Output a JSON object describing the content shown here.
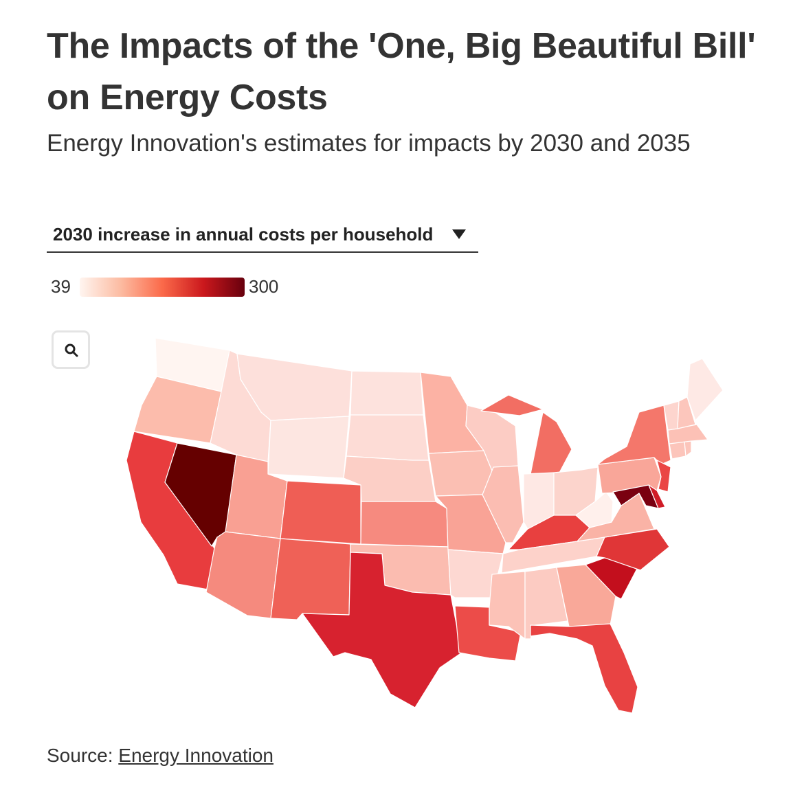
{
  "title": "The Impacts of the 'One, Big Beautiful Bill' on Energy Costs",
  "subtitle": "Energy Innovation's estimates for impacts by 2030 and 2035",
  "dropdown": {
    "selected": "2030 increase in annual costs per household"
  },
  "legend": {
    "min": "39",
    "max": "300",
    "colors": [
      "#fff5f0",
      "#fcbba1",
      "#fb6a4a",
      "#cb181d",
      "#67000d"
    ]
  },
  "zoom": {
    "icon": "search-icon"
  },
  "source": {
    "prefix": "Source: ",
    "link": "Energy Innovation"
  },
  "map_states": [
    {
      "id": "WA",
      "color": "#fff5f1"
    },
    {
      "id": "OR",
      "color": "#fcbcac"
    },
    {
      "id": "CA",
      "color": "#e83c3e"
    },
    {
      "id": "NV",
      "color": "#650000"
    },
    {
      "id": "ID",
      "color": "#fddbd5"
    },
    {
      "id": "MT",
      "color": "#fde0db"
    },
    {
      "id": "WY",
      "color": "#fde6e1"
    },
    {
      "id": "UT",
      "color": "#f9a093"
    },
    {
      "id": "AZ",
      "color": "#f58a7e"
    },
    {
      "id": "CO",
      "color": "#ef5e55"
    },
    {
      "id": "NM",
      "color": "#ef6157"
    },
    {
      "id": "ND",
      "color": "#fde2dd"
    },
    {
      "id": "SD",
      "color": "#fddcd6"
    },
    {
      "id": "NE",
      "color": "#fccfc6"
    },
    {
      "id": "KS",
      "color": "#f68a7f"
    },
    {
      "id": "OK",
      "color": "#fbbcb0"
    },
    {
      "id": "TX",
      "color": "#d7222f"
    },
    {
      "id": "MN",
      "color": "#fcb2a4"
    },
    {
      "id": "IA",
      "color": "#fbbfb3"
    },
    {
      "id": "MO",
      "color": "#f9a396"
    },
    {
      "id": "AR",
      "color": "#fdd8d2"
    },
    {
      "id": "LA",
      "color": "#ec4c49"
    },
    {
      "id": "WI",
      "color": "#fcccc4"
    },
    {
      "id": "IL",
      "color": "#fbbdb2"
    },
    {
      "id": "MI",
      "color": "#f26e63"
    },
    {
      "id": "IN",
      "color": "#fee8e4"
    },
    {
      "id": "OH",
      "color": "#fcd4cc"
    },
    {
      "id": "KY",
      "color": "#e8403f"
    },
    {
      "id": "TN",
      "color": "#fdd2ca"
    },
    {
      "id": "MS",
      "color": "#fcc2b7"
    },
    {
      "id": "AL",
      "color": "#fccbc2"
    },
    {
      "id": "GA",
      "color": "#f9a899"
    },
    {
      "id": "FL",
      "color": "#e84242"
    },
    {
      "id": "SC",
      "color": "#c30f1d"
    },
    {
      "id": "NC",
      "color": "#e03637"
    },
    {
      "id": "VA",
      "color": "#fab3a6"
    },
    {
      "id": "WV",
      "color": "#fff0ec"
    },
    {
      "id": "PA",
      "color": "#f9a699"
    },
    {
      "id": "NY",
      "color": "#f4776b"
    },
    {
      "id": "NJ",
      "color": "#ea4645"
    },
    {
      "id": "MD",
      "color": "#7a0010"
    },
    {
      "id": "DE",
      "color": "#d01c27"
    },
    {
      "id": "CT",
      "color": "#fcc5bb"
    },
    {
      "id": "RI",
      "color": "#fcc5bb"
    },
    {
      "id": "MA",
      "color": "#fcc1b6"
    },
    {
      "id": "VT",
      "color": "#fdd5ce"
    },
    {
      "id": "NH",
      "color": "#fcc6bc"
    },
    {
      "id": "ME",
      "color": "#fee9e5"
    }
  ]
}
